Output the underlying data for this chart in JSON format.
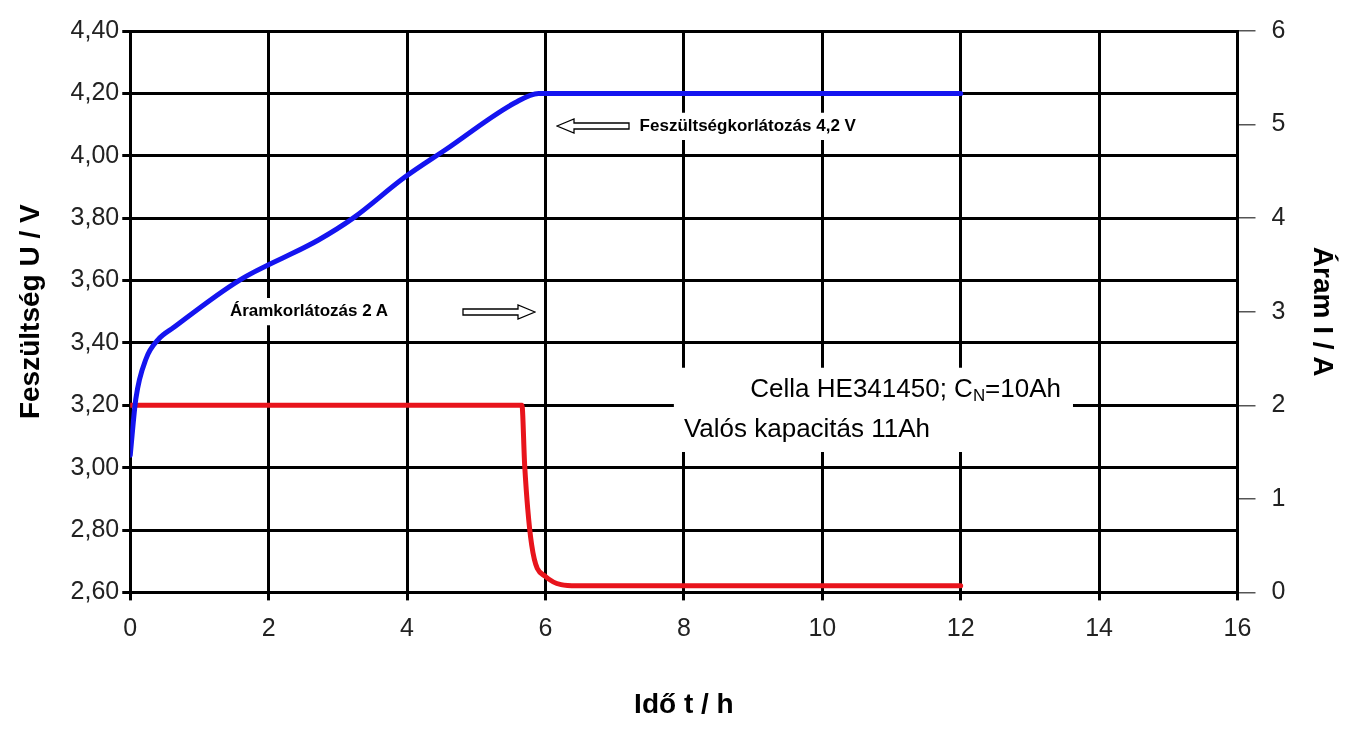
{
  "chart_data": {
    "type": "line",
    "xlabel": "Idő t / h",
    "ylabel": "Feszültség U / V",
    "y2label": "Áram I / A",
    "xlim": [
      0,
      16
    ],
    "xticks": [
      0,
      2,
      4,
      6,
      8,
      10,
      12,
      14,
      16
    ],
    "ylim": [
      2.6,
      4.4
    ],
    "yticks": [
      {
        "value": 2.6,
        "label": "2,60"
      },
      {
        "value": 2.8,
        "label": "2,80"
      },
      {
        "value": 3.0,
        "label": "3,00"
      },
      {
        "value": 3.2,
        "label": "3,20"
      },
      {
        "value": 3.4,
        "label": "3,40"
      },
      {
        "value": 3.6,
        "label": "3,60"
      },
      {
        "value": 3.8,
        "label": "3,80"
      },
      {
        "value": 4.0,
        "label": "4,00"
      },
      {
        "value": 4.2,
        "label": "4,20"
      },
      {
        "value": 4.4,
        "label": "4,40"
      }
    ],
    "y2lim": [
      0,
      6
    ],
    "y2ticks": [
      0,
      1,
      2,
      3,
      4,
      5,
      6
    ],
    "grid": true,
    "legend": false,
    "marker": "none",
    "line_style": "solid",
    "series": [
      {
        "color": "#1414f0",
        "x": [
          0,
          0.08,
          0.23,
          0.4,
          0.63,
          1.57,
          2.72,
          3.22,
          3.96,
          4.56,
          5.56,
          5.9,
          12
        ],
        "values": [
          3.04,
          3.22,
          3.35,
          3.41,
          3.45,
          3.6,
          3.73,
          3.8,
          3.93,
          4.02,
          4.17,
          4.2,
          4.2
        ]
      },
      {
        "color": "#e8141c",
        "axis": "y2",
        "x": [
          0,
          5.66,
          5.7,
          5.8,
          6.0,
          6.45,
          12
        ],
        "values": [
          2,
          2,
          1.35,
          0.51,
          0.17,
          0.07,
          0.07
        ]
      }
    ],
    "annotations": [
      "Feszültségkorlátozás 4,2 V",
      "Áramkorlátozás 2 A",
      "Cella HE341450; C$_{N}$=10Ah",
      "Valós kapacitás 11Ah"
    ]
  }
}
